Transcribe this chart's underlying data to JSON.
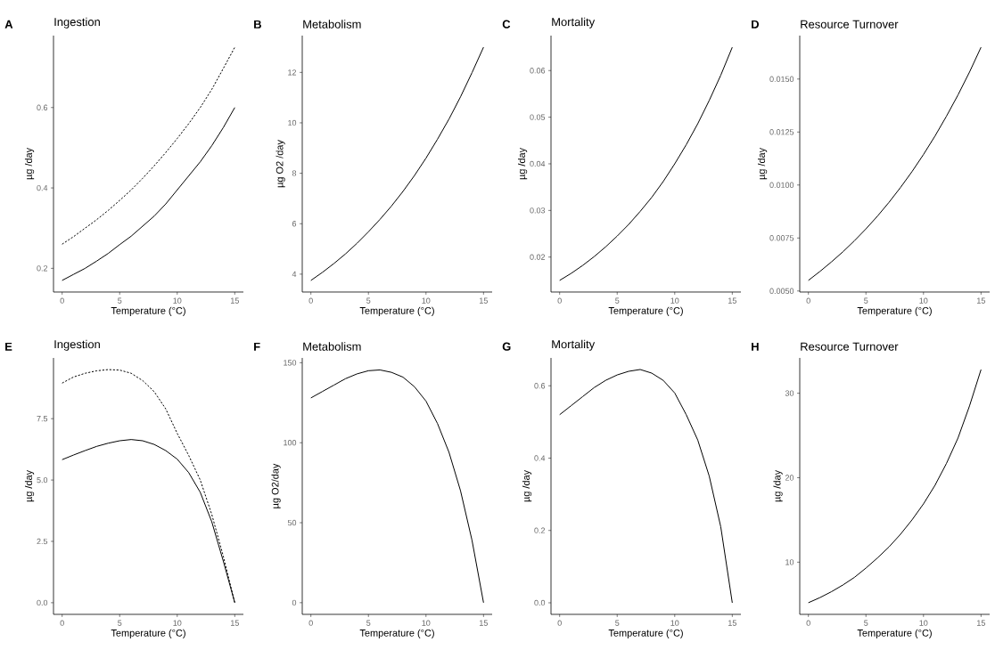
{
  "chart_data": [
    {
      "type": "line",
      "title": "Ingestion",
      "annotations": [
        "A"
      ],
      "xlabel": "Temperature (°C)",
      "ylabel": "µg /day",
      "x": [
        0,
        1,
        2,
        3,
        4,
        5,
        6,
        7,
        8,
        9,
        10,
        11,
        12,
        13,
        14,
        15
      ],
      "xlim": [
        -0.75,
        15.75
      ],
      "xticks": [
        0,
        5,
        10,
        15
      ],
      "ylim": [
        0.141,
        0.779
      ],
      "yticks": [
        0.2,
        0.4,
        0.6
      ],
      "series": [
        {
          "color": "#000000",
          "line_style": "solid",
          "values": [
            0.17,
            0.185,
            0.2,
            0.218,
            0.237,
            0.259,
            0.28,
            0.305,
            0.33,
            0.36,
            0.395,
            0.43,
            0.465,
            0.505,
            0.55,
            0.6
          ]
        },
        {
          "color": "#000000",
          "line_style": "dashed",
          "values": [
            0.26,
            0.279,
            0.3,
            0.321,
            0.344,
            0.369,
            0.395,
            0.424,
            0.455,
            0.488,
            0.523,
            0.56,
            0.6,
            0.645,
            0.697,
            0.75
          ]
        }
      ]
    },
    {
      "type": "line",
      "title": "Metabolism",
      "annotations": [
        "B"
      ],
      "xlabel": "Temperature (°C)",
      "ylabel": "µg O2 /day",
      "x": [
        0,
        1,
        2,
        3,
        4,
        5,
        6,
        7,
        8,
        9,
        10,
        11,
        12,
        13,
        14,
        15
      ],
      "xlim": [
        -0.75,
        15.75
      ],
      "xticks": [
        0,
        5,
        10,
        15
      ],
      "ylim": [
        3.29,
        13.46
      ],
      "yticks": [
        4,
        6,
        8,
        10,
        12
      ],
      "series": [
        {
          "color": "#000000",
          "line_style": "solid",
          "values": [
            3.75,
            4.07,
            4.42,
            4.8,
            5.22,
            5.68,
            6.17,
            6.7,
            7.28,
            7.91,
            8.6,
            9.35,
            10.15,
            11.03,
            11.99,
            13.0
          ]
        }
      ]
    },
    {
      "type": "line",
      "title": "Mortality",
      "annotations": [
        "C"
      ],
      "xlabel": "Temperature (°C)",
      "ylabel": "µg /day",
      "x": [
        0,
        1,
        2,
        3,
        4,
        5,
        6,
        7,
        8,
        9,
        10,
        11,
        12,
        13,
        14,
        15
      ],
      "xlim": [
        -0.75,
        15.75
      ],
      "xticks": [
        0,
        5,
        10,
        15
      ],
      "ylim": [
        0.0125,
        0.0675
      ],
      "yticks": [
        0.02,
        0.03,
        0.04,
        0.05,
        0.06
      ],
      "series": [
        {
          "color": "#000000",
          "line_style": "solid",
          "values": [
            0.015,
            0.0165,
            0.0182,
            0.0201,
            0.0222,
            0.0245,
            0.027,
            0.0298,
            0.0328,
            0.0362,
            0.04,
            0.0441,
            0.0486,
            0.0536,
            0.059,
            0.065
          ]
        }
      ]
    },
    {
      "type": "line",
      "title": "Resource Turnover",
      "annotations": [
        "D"
      ],
      "xlabel": "Temperature (°C)",
      "ylabel": "µg /day",
      "x": [
        0,
        1,
        2,
        3,
        4,
        5,
        6,
        7,
        8,
        9,
        10,
        11,
        12,
        13,
        14,
        15
      ],
      "xlim": [
        -0.75,
        15.75
      ],
      "xticks": [
        0,
        5,
        10,
        15
      ],
      "ylim": [
        0.00495,
        0.01705
      ],
      "yticks": [
        {
          "value": 0.005,
          "label": "0.0050"
        },
        {
          "value": 0.0075,
          "label": "0.0075"
        },
        {
          "value": 0.01,
          "label": "0.0100"
        },
        {
          "value": 0.0125,
          "label": "0.0125"
        },
        {
          "value": 0.015,
          "label": "0.0150"
        }
      ],
      "series": [
        {
          "color": "#000000",
          "line_style": "solid",
          "values": [
            0.0055,
            0.00592,
            0.00637,
            0.00685,
            0.00737,
            0.00793,
            0.00853,
            0.00918,
            0.00988,
            0.01063,
            0.01144,
            0.01231,
            0.01325,
            0.01425,
            0.01533,
            0.0165
          ]
        }
      ]
    },
    {
      "type": "line",
      "title": "Ingestion",
      "annotations": [
        "E"
      ],
      "xlabel": "Temperature (°C)",
      "ylabel": "µg /day",
      "x": [
        0,
        1,
        2,
        3,
        4,
        5,
        6,
        7,
        8,
        9,
        10,
        11,
        12,
        13,
        14,
        15
      ],
      "xlim": [
        -0.75,
        15.75
      ],
      "xticks": [
        0,
        5,
        10,
        15
      ],
      "ylim": [
        -0.475,
        9.975
      ],
      "yticks": [
        {
          "value": 0,
          "label": "0.0"
        },
        2.5,
        {
          "value": 5,
          "label": "5.0"
        },
        7.5
      ],
      "series": [
        {
          "color": "#000000",
          "line_style": "solid",
          "values": [
            5.83,
            6.02,
            6.2,
            6.37,
            6.5,
            6.6,
            6.65,
            6.6,
            6.45,
            6.2,
            5.85,
            5.3,
            4.5,
            3.3,
            1.7,
            0
          ]
        },
        {
          "color": "#000000",
          "line_style": "dashed",
          "values": [
            8.95,
            9.2,
            9.35,
            9.45,
            9.5,
            9.48,
            9.35,
            9.05,
            8.6,
            7.9,
            6.9,
            6.0,
            5.0,
            3.6,
            1.9,
            0
          ]
        }
      ]
    },
    {
      "type": "line",
      "title": "Metabolism",
      "annotations": [
        "F"
      ],
      "xlabel": "Temperature (°C)",
      "ylabel": "µg O2/day",
      "x": [
        0,
        1,
        2,
        3,
        4,
        5,
        6,
        7,
        8,
        9,
        10,
        11,
        12,
        13,
        14,
        15
      ],
      "xlim": [
        -0.75,
        15.75
      ],
      "xticks": [
        0,
        5,
        10,
        15
      ],
      "ylim": [
        -7.3,
        153
      ],
      "yticks": [
        0,
        50,
        100,
        150
      ],
      "series": [
        {
          "color": "#000000",
          "line_style": "solid",
          "values": [
            128,
            132,
            136,
            140,
            143,
            145,
            145.5,
            144,
            141,
            135,
            126,
            112,
            94,
            70,
            39,
            0
          ]
        }
      ]
    },
    {
      "type": "line",
      "title": "Mortality",
      "annotations": [
        "G"
      ],
      "xlabel": "Temperature (°C)",
      "ylabel": "µg /day",
      "x": [
        0,
        1,
        2,
        3,
        4,
        5,
        6,
        7,
        8,
        9,
        10,
        11,
        12,
        13,
        14,
        15
      ],
      "xlim": [
        -0.75,
        15.75
      ],
      "xticks": [
        0,
        5,
        10,
        15
      ],
      "ylim": [
        -0.032,
        0.677
      ],
      "yticks": [
        {
          "value": 0,
          "label": "0.0"
        },
        0.2,
        0.4,
        0.6
      ],
      "series": [
        {
          "color": "#000000",
          "line_style": "solid",
          "values": [
            0.52,
            0.545,
            0.57,
            0.595,
            0.615,
            0.63,
            0.64,
            0.645,
            0.635,
            0.615,
            0.58,
            0.52,
            0.45,
            0.35,
            0.21,
            0
          ]
        }
      ]
    },
    {
      "type": "line",
      "title": "Resource Turnover",
      "annotations": [
        "H"
      ],
      "xlabel": "Temperature (°C)",
      "ylabel": "µg /day",
      "x": [
        0,
        1,
        2,
        3,
        4,
        5,
        6,
        7,
        8,
        9,
        10,
        11,
        12,
        13,
        14,
        15
      ],
      "xlim": [
        -0.75,
        15.75
      ],
      "xticks": [
        0,
        5,
        10,
        15
      ],
      "ylim": [
        3.82,
        34.18
      ],
      "yticks": [
        10,
        20,
        30
      ],
      "series": [
        {
          "color": "#000000",
          "line_style": "solid",
          "values": [
            5.2,
            5.8,
            6.5,
            7.3,
            8.2,
            9.3,
            10.5,
            11.8,
            13.3,
            15.0,
            16.9,
            19.1,
            21.7,
            24.7,
            28.5,
            32.8
          ]
        }
      ]
    }
  ]
}
